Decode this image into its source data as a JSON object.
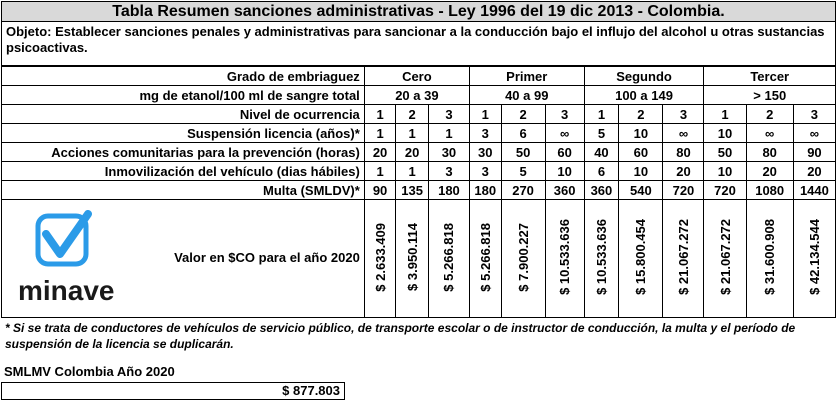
{
  "title": "Tabla Resumen sanciones administrativas - Ley 1996 del 19 dic 2013 - Colombia.",
  "objective": "Objeto: Establecer sanciones penales y administrativas para sancionar a la conducción bajo el influjo del alcohol u otras sustancias psicoactivas.",
  "rows": {
    "grado_label": "Grado de embriaguez",
    "grados": [
      "Cero",
      "Primer",
      "Segundo",
      "Tercer"
    ],
    "etanol_label": "mg de etanol/100 ml de sangre total",
    "etanol_ranges": [
      "20 a 39",
      "40 a 99",
      "100 a 149",
      "> 150"
    ],
    "nivel_label": "Nivel de ocurrencia",
    "nivel": [
      "1",
      "2",
      "3",
      "1",
      "2",
      "3",
      "1",
      "2",
      "3",
      "1",
      "2",
      "3"
    ],
    "suspension_label": "Suspensión licencia (años)*",
    "suspension": [
      "1",
      "1",
      "1",
      "3",
      "6",
      "∞",
      "5",
      "10",
      "∞",
      "10",
      "∞",
      "∞"
    ],
    "acciones_label": "Acciones comunitarias para la prevención (horas)",
    "acciones": [
      "20",
      "20",
      "30",
      "30",
      "50",
      "60",
      "40",
      "60",
      "80",
      "50",
      "80",
      "90"
    ],
    "inmov_label": "Inmovilización del vehículo (dias hábiles)",
    "inmov": [
      "1",
      "1",
      "3",
      "3",
      "5",
      "10",
      "6",
      "10",
      "20",
      "10",
      "20",
      "20"
    ],
    "multa_label": "Multa (SMLDV)*",
    "multa": [
      "90",
      "135",
      "180",
      "180",
      "270",
      "360",
      "360",
      "540",
      "720",
      "720",
      "1080",
      "1440"
    ],
    "valor_label": "Valor en $CO para el año 2020",
    "valor": [
      "$ 2.633.409",
      "$ 3.950.114",
      "$ 5.266.818",
      "$ 5.266.818",
      "$ 7.900.227",
      "$ 10.533.636",
      "$ 10.533.636",
      "$ 15.800.454",
      "$ 21.067.272",
      "$ 21.067.272",
      "$ 31.600.908",
      "$ 42.134.544"
    ]
  },
  "logo": {
    "wordmark": "minave",
    "color": "#2b9be8"
  },
  "note": "* Si se trata de conductores de vehículos de servicio público, de transporte escolar o de instructor de conducción, la multa y el  período de suspensión de la licencia se duplicarán.",
  "smlmv_label": "SMLMV Colombia Año 2020",
  "smlmv_value": "$ 877.803"
}
